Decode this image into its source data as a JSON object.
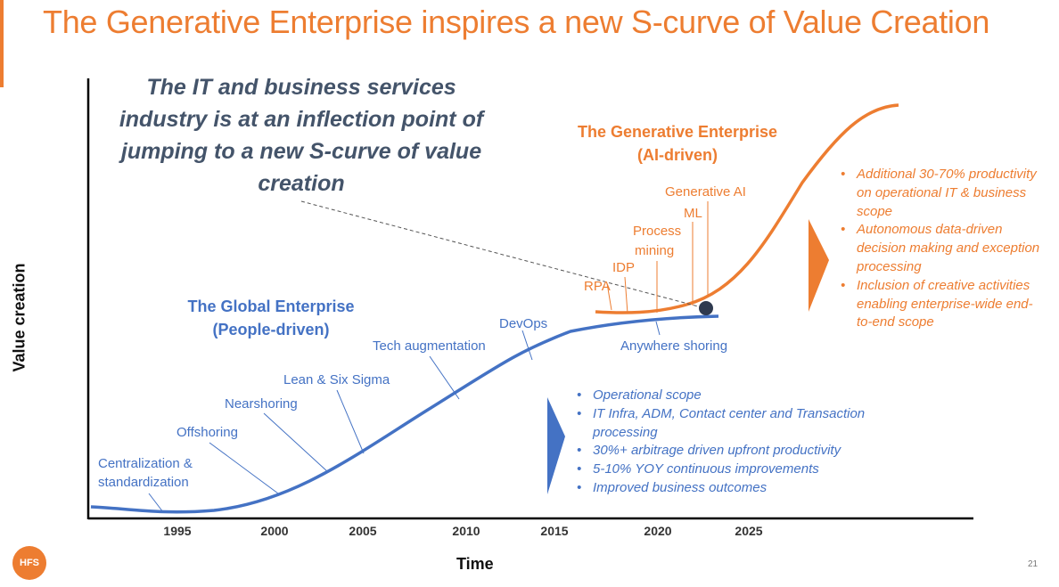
{
  "title": "The Generative Enterprise inspires a new S-curve of Value Creation",
  "callout": "The IT and business services industry is at an inflection point of jumping to a new S-curve of value creation",
  "axes": {
    "y_label": "Value creation",
    "x_label": "Time"
  },
  "years": [
    "1995",
    "2000",
    "2005",
    "2010",
    "2015",
    "2020",
    "2025"
  ],
  "global_enterprise": {
    "title_line1": "The Global Enterprise",
    "title_line2": "(People-driven)",
    "milestones": {
      "centralization_line1": "Centralization &",
      "centralization_line2": "standardization",
      "offshoring": "Offshoring",
      "nearshoring": "Nearshoring",
      "lean": "Lean & Six Sigma",
      "tech_augmentation": "Tech augmentation",
      "devops": "DevOps",
      "anywhere_shoring": "Anywhere shoring"
    },
    "bullets": [
      "Operational scope",
      "IT Infra, ADM, Contact center and Transaction processing",
      "30%+ arbitrage driven upfront productivity",
      "5-10% YOY continuous improvements",
      "Improved business outcomes"
    ]
  },
  "generative_enterprise": {
    "title_line1": "The Generative Enterprise",
    "title_line2": "(AI-driven)",
    "milestones": {
      "rpa": "RPA",
      "idp": "IDP",
      "process_line1": "Process",
      "process_line2": "mining",
      "ml": "ML",
      "generative_ai": "Generative AI"
    },
    "bullets": [
      "Additional 30-70% productivity on operational IT & business scope",
      "Autonomous data-driven decision making and exception processing",
      "Inclusion of creative activities enabling enterprise-wide end-to-end scope"
    ]
  },
  "footer": {
    "logo": "HFS",
    "page_number": "21"
  },
  "colors": {
    "accent": "#ed7d31",
    "blue": "#4472c4",
    "callout": "#44546a"
  }
}
